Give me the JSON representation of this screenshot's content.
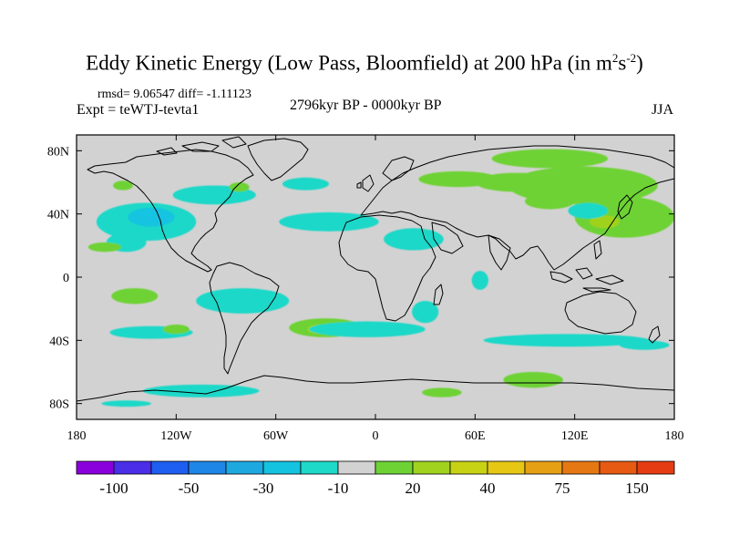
{
  "title": {
    "main": "Eddy Kinetic Energy (Low Pass, Bloomfield) at 200 hPa (in m",
    "sup1": "2",
    "mid": "s",
    "sup2": "-2",
    "end": ")"
  },
  "stats_text": "rmsd= 9.06547 diff= -1.11123",
  "expt_text": "Expt = teWTJ-tevta1",
  "period_text": "2796kyr BP - 0000kyr BP",
  "season_text": "JJA",
  "map": {
    "lon_range": [
      -180,
      180
    ],
    "lat_range": [
      -90,
      90
    ],
    "x_ticks": [
      {
        "value": -180,
        "label": "180"
      },
      {
        "value": -120,
        "label": "120W"
      },
      {
        "value": -60,
        "label": "60W"
      },
      {
        "value": 0,
        "label": "0"
      },
      {
        "value": 60,
        "label": "60E"
      },
      {
        "value": 120,
        "label": "120E"
      },
      {
        "value": 180,
        "label": "180"
      }
    ],
    "y_ticks": [
      {
        "value": 80,
        "label": "80N"
      },
      {
        "value": 40,
        "label": "40N"
      },
      {
        "value": 0,
        "label": "0"
      },
      {
        "value": -40,
        "label": "40S"
      },
      {
        "value": -80,
        "label": "80S"
      }
    ],
    "background_color": "#d2d2d2",
    "anomaly_regions": [
      {
        "id": "n-pacific-blue",
        "color": "#1ed8c8",
        "lon": -138,
        "lat": 35,
        "rlon": 30,
        "rlat": 12
      },
      {
        "id": "n-pacific-west-blue",
        "color": "#1ed8c8",
        "lon": -150,
        "lat": 22,
        "rlon": 12,
        "rlat": 6
      },
      {
        "id": "n-pacific-core",
        "color": "#14c3e0",
        "lon": -135,
        "lat": 38,
        "rlon": 14,
        "rlat": 6
      },
      {
        "id": "hawaii-green",
        "color": "#6ed235",
        "lon": -163,
        "lat": 19,
        "rlon": 10,
        "rlat": 3
      },
      {
        "id": "alaska-green",
        "color": "#6ed235",
        "lon": -152,
        "lat": 58,
        "rlon": 6,
        "rlat": 3
      },
      {
        "id": "w-canada-blue",
        "color": "#1ed8c8",
        "lon": -97,
        "lat": 52,
        "rlon": 25,
        "rlat": 6
      },
      {
        "id": "great-lakes-green",
        "color": "#6ed235",
        "lon": -82,
        "lat": 57,
        "rlon": 6,
        "rlat": 3
      },
      {
        "id": "n-atlantic-blue",
        "color": "#1ed8c8",
        "lon": -28,
        "lat": 35,
        "rlon": 30,
        "rlat": 6
      },
      {
        "id": "n-africa-blue",
        "color": "#1ed8c8",
        "lon": 23,
        "lat": 24,
        "rlon": 18,
        "rlat": 7
      },
      {
        "id": "labrador-blue",
        "color": "#1ed8c8",
        "lon": -42,
        "lat": 59,
        "rlon": 14,
        "rlat": 4
      },
      {
        "id": "europe-green",
        "color": "#6ed235",
        "lon": 50,
        "lat": 62,
        "rlon": 24,
        "rlat": 5
      },
      {
        "id": "arctic-green",
        "color": "#6ed235",
        "lon": 105,
        "lat": 75,
        "rlon": 35,
        "rlat": 6
      },
      {
        "id": "siberia-green",
        "color": "#6ed235",
        "lon": 125,
        "lat": 58,
        "rlon": 45,
        "rlat": 12
      },
      {
        "id": "central-asia-green",
        "color": "#6ed235",
        "lon": 85,
        "lat": 60,
        "rlon": 25,
        "rlat": 6
      },
      {
        "id": "china-green",
        "color": "#6ed235",
        "lon": 105,
        "lat": 48,
        "rlon": 15,
        "rlat": 5
      },
      {
        "id": "japan-green",
        "color": "#6ed235",
        "lon": 150,
        "lat": 38,
        "rlon": 30,
        "rlat": 13
      },
      {
        "id": "japan-core",
        "color": "#a0d21e",
        "lon": 138,
        "lat": 35,
        "rlon": 9,
        "rlat": 4
      },
      {
        "id": "japan-blue",
        "color": "#1ed8c8",
        "lon": 128,
        "lat": 42,
        "rlon": 12,
        "rlat": 5
      },
      {
        "id": "s-pacific-green",
        "color": "#6ed235",
        "lon": -145,
        "lat": -12,
        "rlon": 14,
        "rlat": 5
      },
      {
        "id": "s-pacific-blue",
        "color": "#1ed8c8",
        "lon": -80,
        "lat": -15,
        "rlon": 28,
        "rlat": 8
      },
      {
        "id": "s-pacific-blue-2",
        "color": "#1ed8c8",
        "lon": -135,
        "lat": -35,
        "rlon": 25,
        "rlat": 4
      },
      {
        "id": "s-pacific-green-2",
        "color": "#6ed235",
        "lon": -120,
        "lat": -33,
        "rlon": 8,
        "rlat": 3
      },
      {
        "id": "s-atlantic-green",
        "color": "#6ed235",
        "lon": -30,
        "lat": -32,
        "rlon": 22,
        "rlat": 6
      },
      {
        "id": "s-atlantic-core",
        "color": "#a0d21e",
        "lon": -33,
        "lat": -33,
        "rlon": 8,
        "rlat": 3
      },
      {
        "id": "s-atlantic-blue",
        "color": "#1ed8c8",
        "lon": -5,
        "lat": -33,
        "rlon": 35,
        "rlat": 5
      },
      {
        "id": "s-indian-blue",
        "color": "#1ed8c8",
        "lon": 30,
        "lat": -22,
        "rlon": 8,
        "rlat": 7
      },
      {
        "id": "equatorial-indian-blue",
        "color": "#1ed8c8",
        "lon": 63,
        "lat": -2,
        "rlon": 5,
        "rlat": 6
      },
      {
        "id": "indian-ocean-blue",
        "color": "#1ed8c8",
        "lon": 115,
        "lat": -40,
        "rlon": 50,
        "rlat": 4
      },
      {
        "id": "indian-ocean-green",
        "color": "#6ed235",
        "lon": 95,
        "lat": -65,
        "rlon": 18,
        "rlat": 5
      },
      {
        "id": "tasman-blue",
        "color": "#1ed8c8",
        "lon": 162,
        "lat": -43,
        "rlon": 15,
        "rlat": 3
      },
      {
        "id": "antarctic-blue",
        "color": "#1ed8c8",
        "lon": -105,
        "lat": -72,
        "rlon": 35,
        "rlat": 4
      },
      {
        "id": "antarctic-blue-2",
        "color": "#1ed8c8",
        "lon": -150,
        "lat": -80,
        "rlon": 15,
        "rlat": 2
      },
      {
        "id": "antarctic-green",
        "color": "#6ed235",
        "lon": 40,
        "lat": -73,
        "rlon": 12,
        "rlat": 3
      }
    ]
  },
  "colorbar": {
    "colors": [
      "#8a00dc",
      "#4a2ee8",
      "#1e5ef0",
      "#1e86e6",
      "#1ea8e0",
      "#14c3e0",
      "#1ed8c8",
      "#d2d2d2",
      "#6ed235",
      "#a0d21e",
      "#c8d214",
      "#e6c814",
      "#e6a014",
      "#e67814",
      "#e65a14",
      "#e63c14"
    ],
    "labels": [
      {
        "after_box": 1,
        "text": "-100"
      },
      {
        "after_box": 3,
        "text": "-50"
      },
      {
        "after_box": 5,
        "text": "-30"
      },
      {
        "after_box": 7,
        "text": "-10"
      },
      {
        "after_box": 9,
        "text": "20"
      },
      {
        "after_box": 11,
        "text": "40"
      },
      {
        "after_box": 13,
        "text": "75"
      },
      {
        "after_box": 15,
        "text": "150"
      }
    ]
  }
}
